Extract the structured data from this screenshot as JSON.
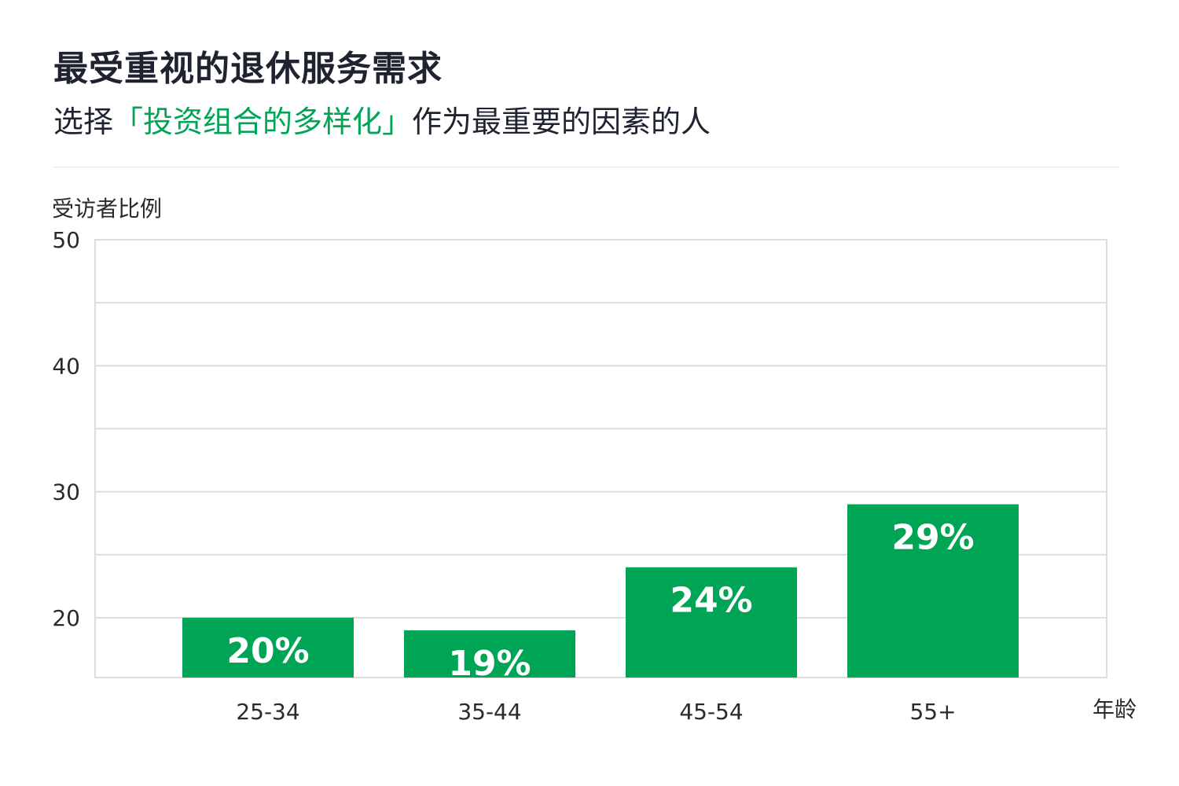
{
  "header": {
    "title": "最受重视的退休服务需求",
    "subtitle_prefix": "选择",
    "subtitle_highlight": "「投资组合的多样化」",
    "subtitle_suffix": "作为最重要的因素的人"
  },
  "colors": {
    "bar": "#00a455",
    "highlight": "#00a455",
    "grid": "#dddddd",
    "text": "#1f2330"
  },
  "chart_data": {
    "type": "bar",
    "ylabel": "受访者比例",
    "xlabel": "年龄",
    "categories": [
      "25-34",
      "35-44",
      "45-54",
      "55+"
    ],
    "values": [
      20,
      19,
      24,
      29
    ],
    "data_labels": [
      "20%",
      "19%",
      "24%",
      "29%"
    ],
    "ylim": [
      15.25,
      50
    ],
    "yticks": [
      20,
      30,
      40,
      50
    ],
    "gridlines": [
      20,
      25,
      30,
      35,
      40,
      45,
      50
    ],
    "grid": true,
    "legend": "none"
  }
}
